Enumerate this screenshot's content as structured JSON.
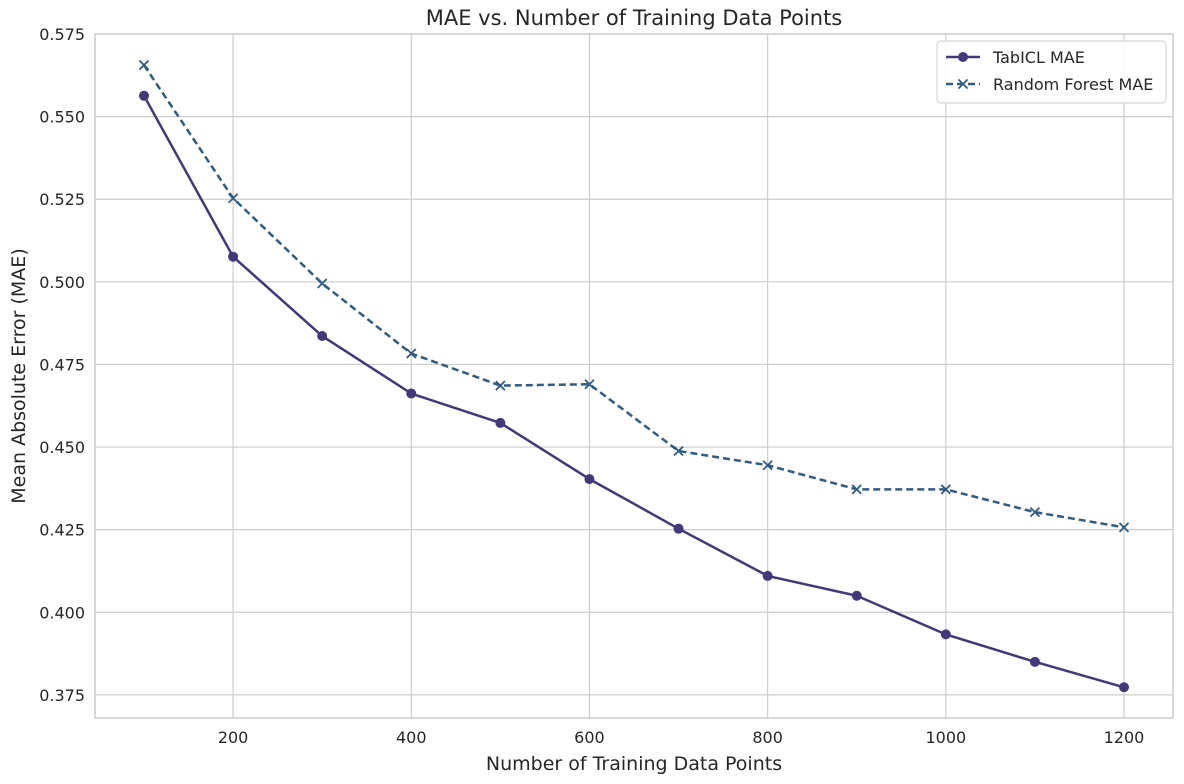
{
  "chart_data": {
    "type": "line",
    "title": "MAE vs. Number of Training Data Points",
    "xlabel": "Number of Training Data Points",
    "ylabel": "Mean Absolute Error (MAE)",
    "x": [
      100,
      200,
      300,
      400,
      500,
      600,
      700,
      800,
      900,
      1000,
      1100,
      1200
    ],
    "xlim": [
      45,
      1255
    ],
    "ylim": [
      0.368,
      0.575
    ],
    "xticks": [
      200,
      400,
      600,
      800,
      1000,
      1200
    ],
    "yticks": [
      0.375,
      0.4,
      0.425,
      0.45,
      0.475,
      0.5,
      0.525,
      0.55,
      0.575
    ],
    "ytick_labels": [
      "0.375",
      "0.400",
      "0.425",
      "0.450",
      "0.475",
      "0.500",
      "0.525",
      "0.550",
      "0.575"
    ],
    "grid": true,
    "legend_position": "top-right",
    "series": [
      {
        "name": "TabICL MAE",
        "values": [
          0.5563,
          0.5076,
          0.4836,
          0.4662,
          0.4573,
          0.4403,
          0.4253,
          0.411,
          0.405,
          0.3933,
          0.385,
          0.3773
        ],
        "color": "#433879",
        "style": "solid",
        "marker": "circle"
      },
      {
        "name": "Random Forest MAE",
        "values": [
          0.5656,
          0.5253,
          0.4995,
          0.4783,
          0.4686,
          0.469,
          0.4488,
          0.4445,
          0.4372,
          0.4372,
          0.4303,
          0.4257
        ],
        "color": "#2e5c82",
        "style": "dashed",
        "marker": "x"
      }
    ]
  }
}
